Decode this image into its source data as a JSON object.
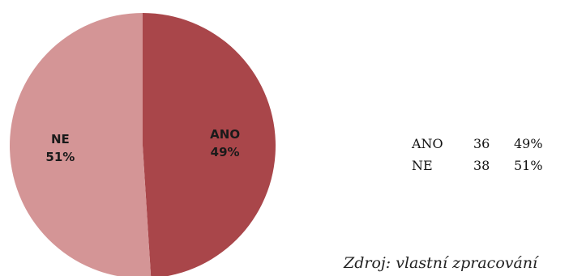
{
  "chart_data": {
    "type": "pie",
    "categories": [
      "ANO",
      "NE"
    ],
    "values": [
      49,
      51
    ],
    "slice_labels": [
      {
        "name": "ANO",
        "percent": "49%"
      },
      {
        "name": "NE",
        "percent": "51%"
      }
    ],
    "colors": [
      "#a9464a",
      "#d49596"
    ],
    "title": ""
  },
  "table": {
    "rows": [
      {
        "category": "ANO",
        "count": "36",
        "percent": "49%"
      },
      {
        "category": "NE",
        "count": "38",
        "percent": "51%"
      }
    ]
  },
  "source_note": "Zdroj: vlastní zpracování"
}
